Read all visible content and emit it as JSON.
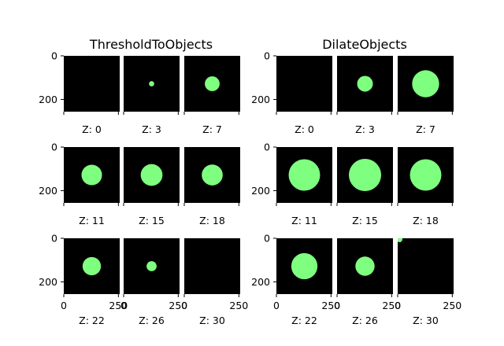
{
  "chart_data": {
    "type": "heatmap",
    "description_kind": "image-grid",
    "colors": {
      "background": "#000000",
      "object": "#7fff7f",
      "figure_bg": "#ffffff"
    },
    "image_extent": {
      "x": [
        0,
        256
      ],
      "y": [
        256,
        0
      ]
    },
    "x_ticks": [
      "0",
      "250"
    ],
    "y_ticks": [
      "0",
      "200"
    ],
    "panels": [
      {
        "title": "ThresholdToObjects",
        "frames": [
          {
            "label": "Z: 0",
            "circles": []
          },
          {
            "label": "Z: 3",
            "circles": [
              {
                "cx": 128,
                "cy": 128,
                "r": 12
              }
            ]
          },
          {
            "label": "Z: 7",
            "circles": [
              {
                "cx": 128,
                "cy": 128,
                "r": 34
              }
            ]
          },
          {
            "label": "Z: 11",
            "circles": [
              {
                "cx": 128,
                "cy": 128,
                "r": 47
              }
            ]
          },
          {
            "label": "Z: 15",
            "circles": [
              {
                "cx": 128,
                "cy": 128,
                "r": 50
              }
            ]
          },
          {
            "label": "Z: 18",
            "circles": [
              {
                "cx": 128,
                "cy": 128,
                "r": 48
              }
            ]
          },
          {
            "label": "Z: 22",
            "circles": [
              {
                "cx": 128,
                "cy": 128,
                "r": 42
              }
            ]
          },
          {
            "label": "Z: 26",
            "circles": [
              {
                "cx": 128,
                "cy": 128,
                "r": 23
              }
            ]
          },
          {
            "label": "Z: 30",
            "circles": []
          }
        ]
      },
      {
        "title": "DilateObjects",
        "frames": [
          {
            "label": "Z: 0",
            "circles": []
          },
          {
            "label": "Z: 3",
            "circles": [
              {
                "cx": 128,
                "cy": 128,
                "r": 36
              }
            ]
          },
          {
            "label": "Z: 7",
            "circles": [
              {
                "cx": 128,
                "cy": 128,
                "r": 62
              }
            ]
          },
          {
            "label": "Z: 11",
            "circles": [
              {
                "cx": 128,
                "cy": 128,
                "r": 72
              }
            ]
          },
          {
            "label": "Z: 15",
            "circles": [
              {
                "cx": 128,
                "cy": 128,
                "r": 74
              }
            ]
          },
          {
            "label": "Z: 18",
            "circles": [
              {
                "cx": 128,
                "cy": 128,
                "r": 72
              }
            ]
          },
          {
            "label": "Z: 22",
            "circles": [
              {
                "cx": 128,
                "cy": 128,
                "r": 60
              }
            ]
          },
          {
            "label": "Z: 26",
            "circles": [
              {
                "cx": 128,
                "cy": 128,
                "r": 44
              }
            ]
          },
          {
            "label": "Z: 30",
            "circles": [
              {
                "cx": 8,
                "cy": 4,
                "r": 14
              }
            ]
          }
        ]
      }
    ]
  }
}
